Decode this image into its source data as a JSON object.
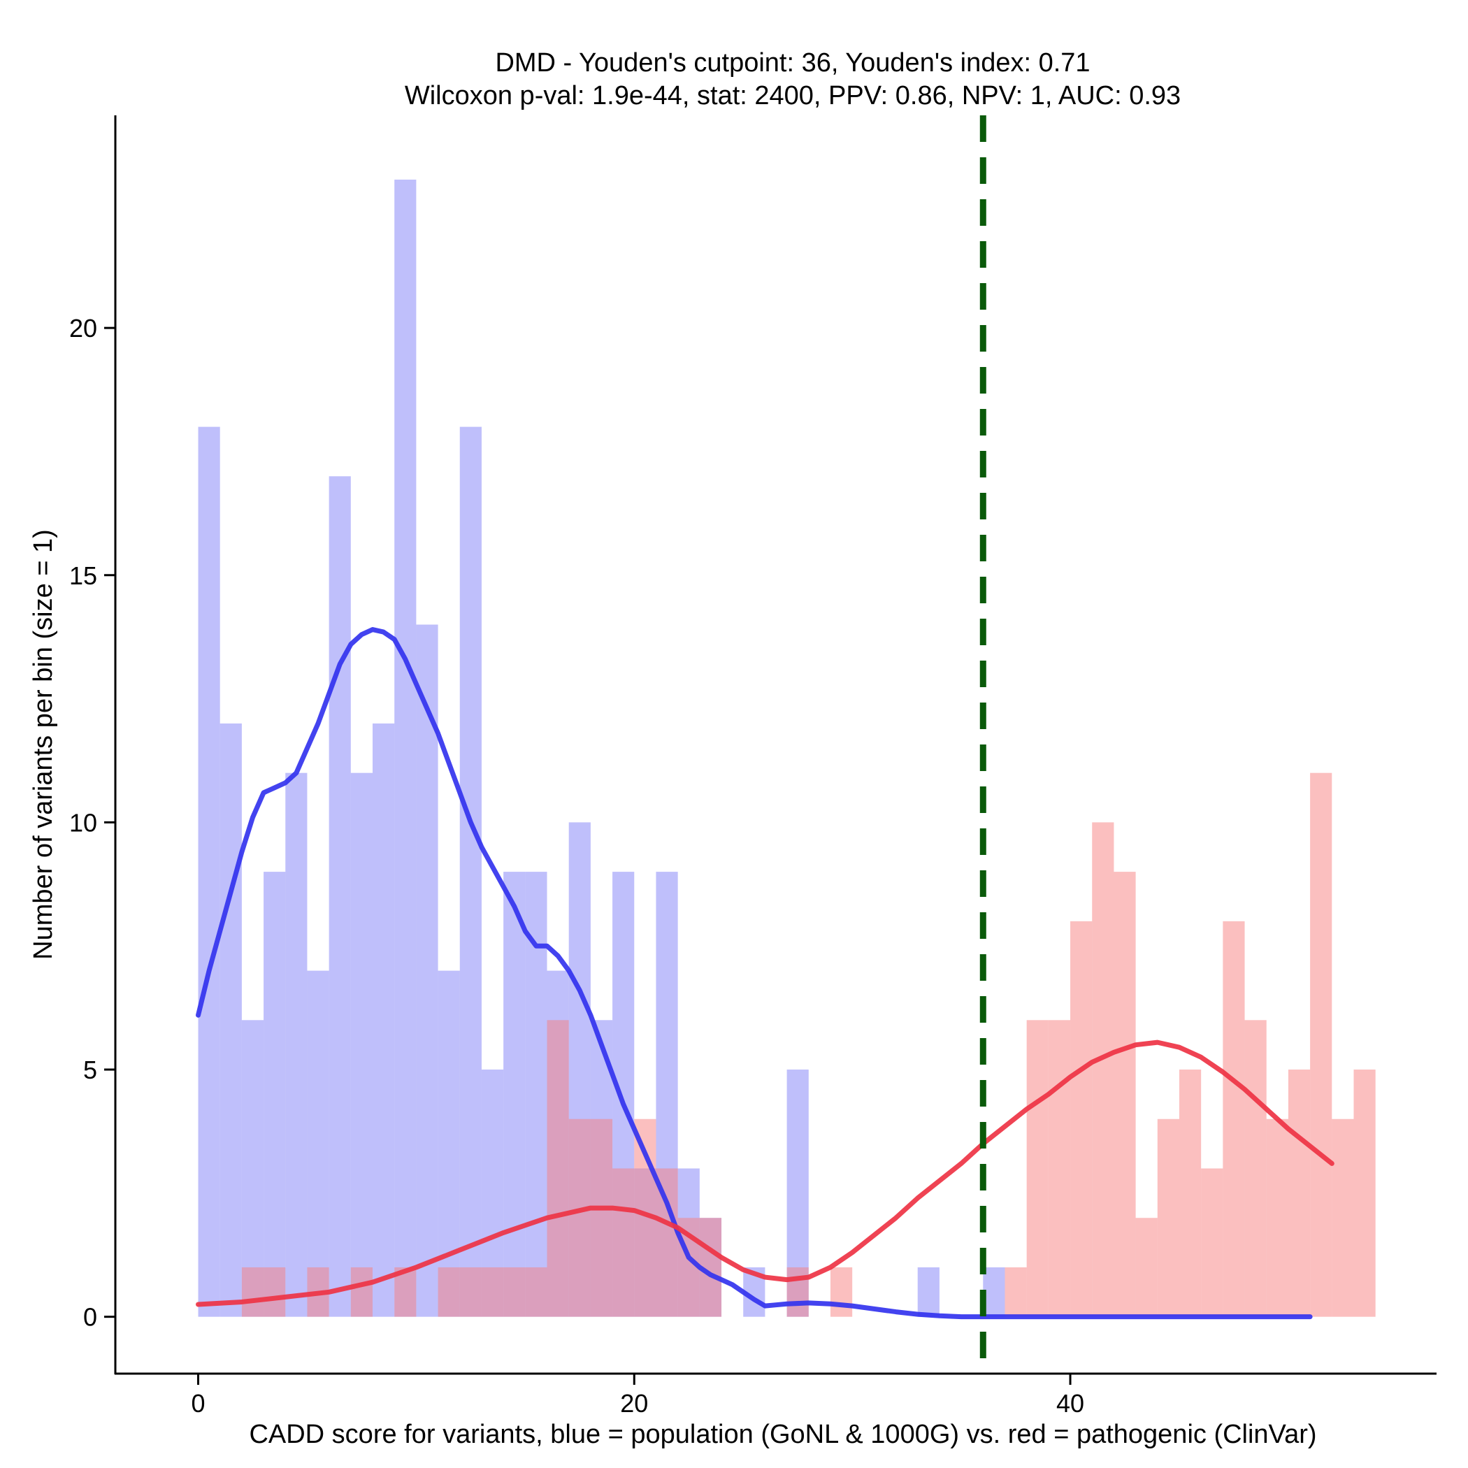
{
  "chart_data": {
    "type": "histogram",
    "title_line1": "DMD - Youden's cutpoint: 36, Youden's index: 0.71",
    "title_line2": "Wilcoxon p-val: 1.9e-44, stat: 2400, PPV: 0.86, NPV: 1, AUC: 0.93",
    "xlabel": "CADD score for variants, blue = population (GoNL & 1000G) vs. red = pathogenic (ClinVar)",
    "ylabel": "Number of variants per bin (size = 1)",
    "xlim": [
      -3.8,
      56.8
    ],
    "ylim": [
      -1.15,
      24.3
    ],
    "x_ticks": [
      0,
      20,
      40
    ],
    "y_ticks": [
      0,
      5,
      10,
      15,
      20
    ],
    "bin_width": 1,
    "cutpoint": 36,
    "colors": {
      "population_bar": "#bfbffb",
      "pathogenic_bar": "#fbbfbf",
      "overlap_bar": "#cc91c1",
      "population_line": "#3333ee",
      "pathogenic_line": "#ee3344",
      "cutpoint_line": "#0a5a0a",
      "axis": "#000000"
    },
    "series": [
      {
        "name": "population (GoNL & 1000G)",
        "bins": [
          {
            "x0": 0,
            "count": 18
          },
          {
            "x0": 1,
            "count": 12
          },
          {
            "x0": 2,
            "count": 6
          },
          {
            "x0": 3,
            "count": 9
          },
          {
            "x0": 4,
            "count": 11
          },
          {
            "x0": 5,
            "count": 7
          },
          {
            "x0": 6,
            "count": 17
          },
          {
            "x0": 7,
            "count": 11
          },
          {
            "x0": 8,
            "count": 12
          },
          {
            "x0": 9,
            "count": 23
          },
          {
            "x0": 10,
            "count": 14
          },
          {
            "x0": 11,
            "count": 7
          },
          {
            "x0": 12,
            "count": 18
          },
          {
            "x0": 13,
            "count": 5
          },
          {
            "x0": 14,
            "count": 9
          },
          {
            "x0": 15,
            "count": 9
          },
          {
            "x0": 16,
            "count": 7
          },
          {
            "x0": 17,
            "count": 10
          },
          {
            "x0": 18,
            "count": 6
          },
          {
            "x0": 19,
            "count": 9
          },
          {
            "x0": 20,
            "count": 3
          },
          {
            "x0": 21,
            "count": 9
          },
          {
            "x0": 22,
            "count": 3
          },
          {
            "x0": 23,
            "count": 2
          },
          {
            "x0": 25,
            "count": 1
          },
          {
            "x0": 27,
            "count": 5
          },
          {
            "x0": 33,
            "count": 1
          },
          {
            "x0": 36,
            "count": 1
          }
        ],
        "density_curve": [
          [
            0,
            6.1
          ],
          [
            0.5,
            7.0
          ],
          [
            1,
            7.8
          ],
          [
            1.5,
            8.6
          ],
          [
            2,
            9.4
          ],
          [
            2.5,
            10.1
          ],
          [
            3,
            10.6
          ],
          [
            3.5,
            10.7
          ],
          [
            4,
            10.8
          ],
          [
            4.5,
            11.0
          ],
          [
            5,
            11.5
          ],
          [
            5.5,
            12.0
          ],
          [
            6,
            12.6
          ],
          [
            6.5,
            13.2
          ],
          [
            7,
            13.6
          ],
          [
            7.5,
            13.8
          ],
          [
            8,
            13.9
          ],
          [
            8.5,
            13.85
          ],
          [
            9,
            13.7
          ],
          [
            9.5,
            13.3
          ],
          [
            10,
            12.8
          ],
          [
            10.5,
            12.3
          ],
          [
            11,
            11.8
          ],
          [
            11.5,
            11.2
          ],
          [
            12,
            10.6
          ],
          [
            12.5,
            10.0
          ],
          [
            13,
            9.5
          ],
          [
            13.5,
            9.1
          ],
          [
            14,
            8.7
          ],
          [
            14.5,
            8.3
          ],
          [
            15,
            7.8
          ],
          [
            15.5,
            7.5
          ],
          [
            16,
            7.5
          ],
          [
            16.5,
            7.3
          ],
          [
            17,
            7.0
          ],
          [
            17.5,
            6.6
          ],
          [
            18,
            6.1
          ],
          [
            18.5,
            5.5
          ],
          [
            19,
            4.9
          ],
          [
            19.5,
            4.3
          ],
          [
            20,
            3.8
          ],
          [
            20.5,
            3.3
          ],
          [
            21,
            2.8
          ],
          [
            21.5,
            2.3
          ],
          [
            22,
            1.7
          ],
          [
            22.5,
            1.2
          ],
          [
            23,
            1.0
          ],
          [
            23.5,
            0.85
          ],
          [
            24,
            0.75
          ],
          [
            24.5,
            0.65
          ],
          [
            25,
            0.5
          ],
          [
            25.5,
            0.35
          ],
          [
            26,
            0.22
          ],
          [
            26.5,
            0.24
          ],
          [
            27,
            0.26
          ],
          [
            28,
            0.28
          ],
          [
            29,
            0.26
          ],
          [
            30,
            0.22
          ],
          [
            31,
            0.16
          ],
          [
            32,
            0.1
          ],
          [
            33,
            0.05
          ],
          [
            34,
            0.02
          ],
          [
            35,
            0.0
          ],
          [
            36,
            0.0
          ],
          [
            37,
            0.0
          ],
          [
            38,
            0.0
          ],
          [
            39,
            0.0
          ],
          [
            40,
            0.0
          ],
          [
            41,
            0.0
          ],
          [
            42,
            0.0
          ],
          [
            43,
            0.0
          ],
          [
            44,
            0.0
          ],
          [
            45,
            0.0
          ],
          [
            46,
            0.0
          ],
          [
            47,
            0.0
          ],
          [
            48,
            0.0
          ],
          [
            49,
            0.0
          ],
          [
            50,
            0.0
          ],
          [
            51,
            0.0
          ]
        ]
      },
      {
        "name": "pathogenic (ClinVar)",
        "bins": [
          {
            "x0": 2,
            "count": 1
          },
          {
            "x0": 3,
            "count": 1
          },
          {
            "x0": 5,
            "count": 1
          },
          {
            "x0": 7,
            "count": 1
          },
          {
            "x0": 9,
            "count": 1
          },
          {
            "x0": 11,
            "count": 1
          },
          {
            "x0": 12,
            "count": 1
          },
          {
            "x0": 13,
            "count": 1
          },
          {
            "x0": 14,
            "count": 1
          },
          {
            "x0": 15,
            "count": 1
          },
          {
            "x0": 16,
            "count": 6
          },
          {
            "x0": 17,
            "count": 4
          },
          {
            "x0": 18,
            "count": 4
          },
          {
            "x0": 19,
            "count": 3
          },
          {
            "x0": 20,
            "count": 4
          },
          {
            "x0": 21,
            "count": 3
          },
          {
            "x0": 22,
            "count": 2
          },
          {
            "x0": 23,
            "count": 2
          },
          {
            "x0": 27,
            "count": 1
          },
          {
            "x0": 29,
            "count": 1
          },
          {
            "x0": 37,
            "count": 1
          },
          {
            "x0": 38,
            "count": 6
          },
          {
            "x0": 39,
            "count": 6
          },
          {
            "x0": 40,
            "count": 8
          },
          {
            "x0": 41,
            "count": 10
          },
          {
            "x0": 42,
            "count": 9
          },
          {
            "x0": 43,
            "count": 2
          },
          {
            "x0": 44,
            "count": 4
          },
          {
            "x0": 45,
            "count": 5
          },
          {
            "x0": 46,
            "count": 3
          },
          {
            "x0": 47,
            "count": 8
          },
          {
            "x0": 48,
            "count": 6
          },
          {
            "x0": 49,
            "count": 4
          },
          {
            "x0": 50,
            "count": 5
          },
          {
            "x0": 51,
            "count": 11
          },
          {
            "x0": 52,
            "count": 4
          },
          {
            "x0": 53,
            "count": 5
          }
        ],
        "density_curve": [
          [
            0,
            0.25
          ],
          [
            2,
            0.3
          ],
          [
            4,
            0.4
          ],
          [
            6,
            0.5
          ],
          [
            8,
            0.7
          ],
          [
            10,
            1.0
          ],
          [
            12,
            1.35
          ],
          [
            14,
            1.7
          ],
          [
            16,
            2.0
          ],
          [
            18,
            2.2
          ],
          [
            19,
            2.2
          ],
          [
            20,
            2.15
          ],
          [
            21,
            2.0
          ],
          [
            22,
            1.8
          ],
          [
            23,
            1.5
          ],
          [
            24,
            1.2
          ],
          [
            25,
            0.95
          ],
          [
            26,
            0.8
          ],
          [
            27,
            0.75
          ],
          [
            28,
            0.8
          ],
          [
            29,
            1.0
          ],
          [
            30,
            1.3
          ],
          [
            31,
            1.65
          ],
          [
            32,
            2.0
          ],
          [
            33,
            2.4
          ],
          [
            34,
            2.75
          ],
          [
            35,
            3.1
          ],
          [
            36,
            3.5
          ],
          [
            37,
            3.85
          ],
          [
            38,
            4.2
          ],
          [
            39,
            4.5
          ],
          [
            40,
            4.85
          ],
          [
            41,
            5.15
          ],
          [
            42,
            5.35
          ],
          [
            43,
            5.5
          ],
          [
            44,
            5.55
          ],
          [
            45,
            5.45
          ],
          [
            46,
            5.25
          ],
          [
            47,
            4.95
          ],
          [
            48,
            4.6
          ],
          [
            49,
            4.2
          ],
          [
            50,
            3.8
          ],
          [
            51,
            3.45
          ],
          [
            52,
            3.1
          ]
        ]
      }
    ]
  }
}
